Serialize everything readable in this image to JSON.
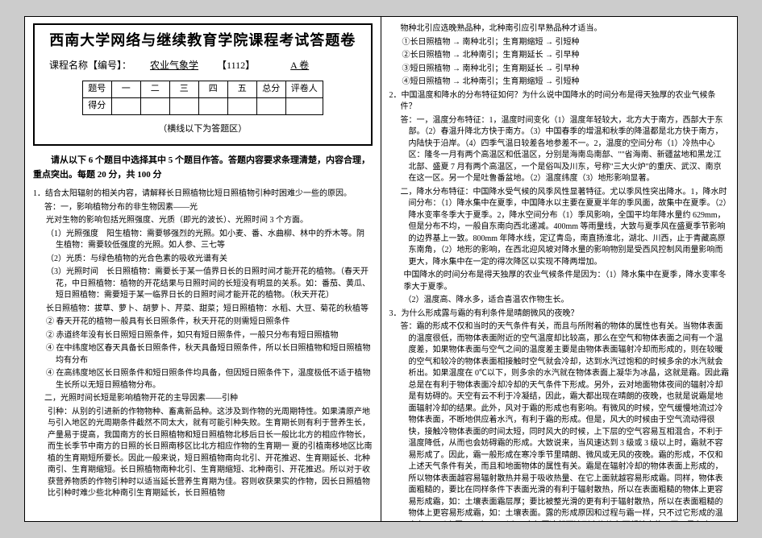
{
  "header": {
    "main_title": "西南大学网络与继续教育学院课程考试答题卷",
    "course_label": "课程名称【编号】：",
    "course_name": "农业气象学",
    "course_code": "【1112】",
    "paper": "A 卷",
    "note": "（横线以下为答题区）"
  },
  "score_table": {
    "row1": [
      "题号",
      "一",
      "二",
      "三",
      "四",
      "五",
      "总分",
      "评卷人"
    ],
    "row2_head": "得分"
  },
  "instruction": "请从以下 6 个题目中选择其中 5 个题目作答。答题内容要求条理清楚，内容合理，重点突出。每题 20 分，共 100 分",
  "left_body": [
    {
      "cls": "q",
      "t": "1．结合太阳辐射的相关内容，请解释长日照植物比短日照植物引种时困难少一些的原因。"
    },
    {
      "cls": "ans",
      "t": "答：一，影响植物分布的非生物因素——光"
    },
    {
      "cls": "sub",
      "t": "光对生物的影响包括光照强度、光质（即光的波长）、光照时间 3 个方面。"
    },
    {
      "cls": "sub",
      "t": "（1）光照强度　阳生植物：需要够强烈的光照。如小麦、番、水曲柳、林中的乔木等。阴生植物：需要较低强度的光照。如人参、三七等"
    },
    {
      "cls": "sub",
      "t": "（2）光质：与绿色植物的光合色素的吸收光谱有关"
    },
    {
      "cls": "sub",
      "t": "（3）光照时间　长日照植物：需要长于某一值界日长的日照时间才能开花的植物。（春天开花，中日照植物：植物的开花结果与日照时间的长短没有明显的关系。如：番茄、黄瓜、短日照植物：需要短于某一临界日长的日照时间才能开花的植物。（秋天开花）"
    },
    {
      "cls": "sub",
      "t": "长日照植物：拔草、萝卜、胡萝卜、芹菜、甜菜；短日照植物：水稻、大豆、菊花的秋植等"
    },
    {
      "cls": "sub",
      "t": "② 春天开花的植物一般具有长日照条件，秋天开花的则需短日照条件"
    },
    {
      "cls": "sub",
      "t": "② 赤道终年没有长日照短日照条件，如只有短日照条件，一般只分布有短日照植物"
    },
    {
      "cls": "sub",
      "t": "④ 在中纬度地区春天具备长日照条件，秋天具备短日照条件，所以长日照植物和短日照植物均有分布"
    },
    {
      "cls": "sub",
      "t": "④ 在高纬度地区长日照条件和短日照条件均具备，但因短日照条件下，温度极低不适于植物生长所以无短日照植物分布。"
    },
    {
      "cls": "ans",
      "t": "二，光照时间长短是影响植物开花的主导因素——引种"
    },
    {
      "cls": "para",
      "t": "引种：从别的引进新的作物物种、畜禽新品种。这涉及到作物的光周期特性。如果清原产地与引入地区的光周期条件截然不同太大，就有可能引种失败。生育期长则有利于营养生长，产量易于提高，我国南方的长日照植物和短日照植物北移后日长一般比北方的相应作物长，而生长季节中南方的日照的长日照南移区比北方相应作物的生育期一  夏的引植南移地区比南植的生育期短所要长。因此一般来说，短日照植物南向北引、开花推迟、生育期延长、北种南引、生育期缩短。长日照植物南种北引、生育期缩短、北种南引、开花推迟。所以对于收获营养物质的作物引种时以适当延长营养生育期为佳。容则收获果实的作物，因长日照植物比引种时难少些北种南引生育期延长，长日照植物"
    }
  ],
  "right_body": [
    {
      "cls": "flat",
      "t": "物种北引应选晚熟品种，北种南引应引早熟品种才适当。"
    },
    {
      "cls": "sub",
      "t": "①长日照植物 → 南种北引；生育期缩短 → 引短种"
    },
    {
      "cls": "sub",
      "t": "②长日照植物 → 北种南引；生育期延长 → 引早种"
    },
    {
      "cls": "sub",
      "t": "③短日照植物 → 南种北引；生育期延长 → 引早种"
    },
    {
      "cls": "sub",
      "t": "④短日照植物 → 北种南引；生育期缩短 → 引短种"
    },
    {
      "cls": "q",
      "t": "2．中国温度和降水的分布特征如何？为什么说中国降水的时间分布是得天独厚的农业气候条件？"
    },
    {
      "cls": "ans",
      "t": "答：一，温度分布特征：1，温度时间变化（1）温度年轻较大，北方大于南方，西部大于东部。（2）春温升降北方快于南方。（3）中国春季的增温和秋季的降温都是北方快于南方，内陆快于沿岸。（4）四季气温日较差各地参差不一。2，温度的空间分布（1）冷热中心区：隆冬一月有两个高温区和低温区，分别是海南岛南部、\"\"省海南、新疆盆地和黑龙江北部、盛夏 7 月有两个高温区，一个是俗叫及川东，号称\"三大火炉\"的重庆、武汉、南京在这一区。另一个是吐鲁番盆地。（2）温度纬度（3）地形影响显著。"
    },
    {
      "cls": "ans",
      "t": "二，降水分布特征：中国降水受气候的风季风性显著特征。尤以季风性突出降水。1，降水时间分布：（1）降水集中在夏季，中国降水以主要在夏夏半年的季风面，故集中在夏季。（2）降水变率冬季大于夏季。2，降水空间分布（1）季风影响，全国平均年降水量约 629mm，但是分布不均，一般自东南向西北递减。400mm 等雨量线，大致与夏季风在盛夏季节影响的边界基上一致。800mm 年降水线，定辽青岛，南直扬淮北，湖北、川西，止于青藏高原东南角，（2）地形的影响，在西北迎风坡对降水量的影响物别是受西风控制风雨量影响而更大，降水集中在一定的得次降区以实现不降两增加。"
    },
    {
      "cls": "para",
      "t": "中国降水的时间分布是得天独厚的农业气候条件是因为：（1）降水集中在夏季，降水变率冬季大于夏季。"
    },
    {
      "cls": "para",
      "t": "（2）温度高、降水多，适合喜温农作物生长。"
    },
    {
      "cls": "q",
      "t": "3．为什么形成露与霜的有利条件是晴朗微风的夜晚？"
    },
    {
      "cls": "ans",
      "t": "答：霜的形成不仅和当时的天气条件有关，而且与所附着的物体的属性也有关。当物体表面的温度很低，而物体表面附近的空气温度却比较高，那么在空气和物体表面之间有一个温度差，如果物体表面与空气之间的温度差主要是由物体表面辐射冷却而形成的，则在较暖的空气和较冷的物体表面相接触时空气就会冷却，达到水汽过饱和的时候多余的水汽就会析出。如果温度在 0℃以下，则多余的水汽就在物体表面上凝华为冰晶，这就是霜。因此霜总是在有利于物体表面冷却冷却的天气条件下形成。另外，云对地面物体夜间的辐射冷却是有妨碍的。天空有云不利于冷凝结，因此，霜大都出现在晴朗的夜晚，也就是说霜是地面辐射冷却的结果。此外，风对于霜的形成也有影响。有微风的时候，空气缓慢地流过冷物体表面，不断地供应着水汽，有利于霜的形成。但是，风大的时候由于空气流动得很快，接触冷物体表面的时间太短，同时风大的时候，上下层的空气容易互相混合，不利于温度降低，从而也会妨碍霜的形成。大致说来，当风速达到 3 级或 3 级以上时，霜就不容易形成了。因此，霜一般形成在寒冷季节里晴朗、微风或无风的夜晚。霜的形成，不仅和上述天气条件有关，而且和地面物体的属性有关。霜是在辐射冷却的物体表面上形成的，所以物体表面越容易辐射散热并易于吸收热量、在它上面就越容易形成霜。同样，物体表面粗糙的，要比在同样条件下表面光滑的有利于辐射散热，所以在表面粗糙的物体上更容易形成霜，如：土壤表面霜层厚；要比被整光滑的更有利于辐射散热，所以在表面粗糙的物体上更容易形成霜，如：土壤表面。露的形成原因和过程与霜一样，只不过它形成的温度在 0℃以上罢了。在 0℃以上，空气因冷却而达到水汽饱和而凝结出的不同只是和水，一是变开化水，一是液化成水，其结果只是日出以后因温度升"
    }
  ]
}
